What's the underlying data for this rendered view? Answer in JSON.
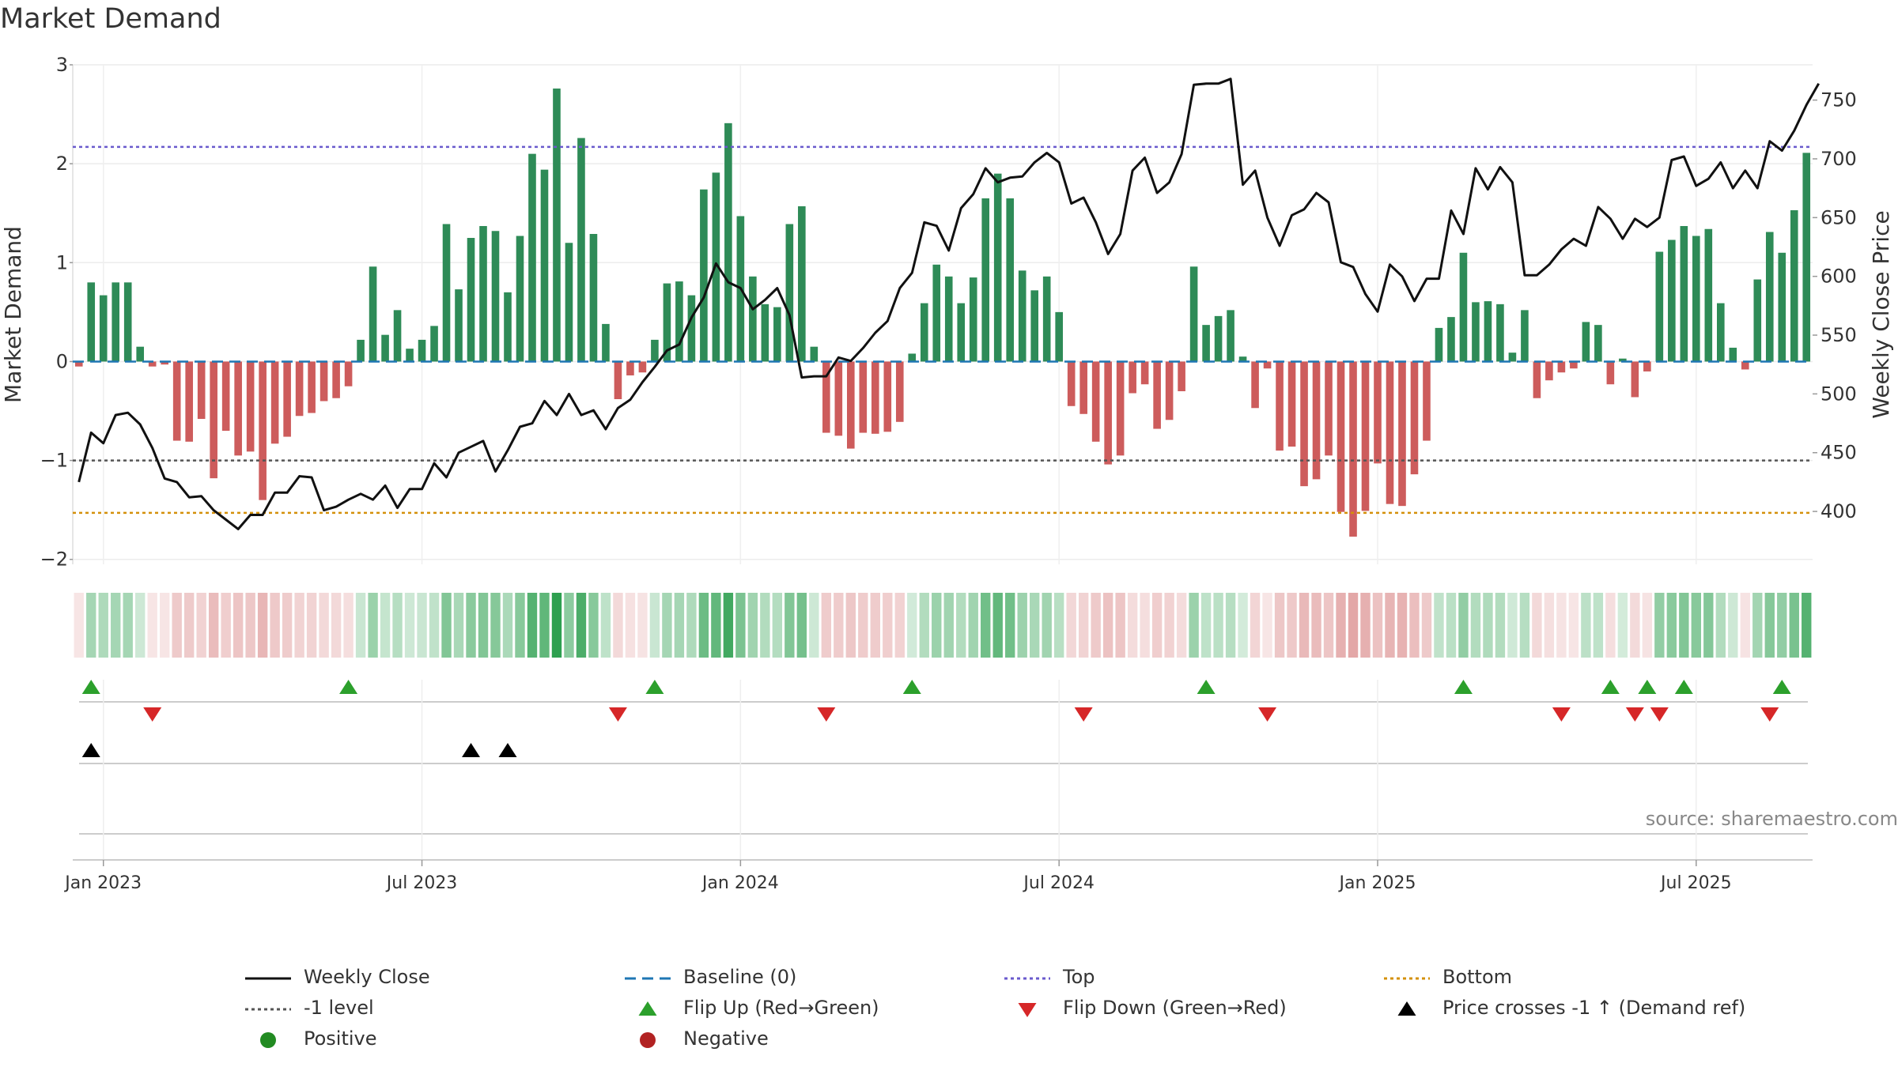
{
  "title": "Market Demand",
  "source": "source: sharemaestro.com",
  "colors": {
    "pos_bar": "#2e8b57",
    "neg_bar": "#cd5c5c",
    "price": "#111111",
    "baseline": "#1f77b4",
    "top": "#6a5acd",
    "minus1": "#555555",
    "bottom": "#d4900a",
    "flip_up": "#2ca02c",
    "flip_down": "#d62728",
    "cross": "#000000",
    "positive": "#228b22",
    "negative": "#b22222"
  },
  "chart_data": {
    "type": "bar+line",
    "title": "Market Demand",
    "ylabel_left": "Market Demand",
    "ylabel_right": "Weekly Close Price",
    "ylim_left": [
      -2.05,
      3.0
    ],
    "ylim_right": [
      355,
      780
    ],
    "left_ticks": [
      "3",
      "2",
      "1",
      "0",
      "−1",
      "−2"
    ],
    "left_tick_values": [
      3,
      2,
      1,
      0,
      -1,
      -2
    ],
    "right_ticks": [
      "750",
      "700",
      "650",
      "600",
      "550",
      "500",
      "450",
      "400"
    ],
    "right_tick_values": [
      750,
      700,
      650,
      600,
      550,
      500,
      450,
      400
    ],
    "x_ticks": [
      "Jan 2023",
      "Jul 2023",
      "Jan 2024",
      "Jul 2024",
      "Jan 2025",
      "Jul 2025"
    ],
    "x_tick_weeks": [
      2,
      28,
      54,
      80,
      106,
      132
    ],
    "reference_lines": {
      "baseline": 0,
      "top": 2.17,
      "minus1": -1.0,
      "bottom": -1.53
    },
    "demand": [
      -0.05,
      0.8,
      0.67,
      0.8,
      0.8,
      0.15,
      -0.05,
      -0.03,
      -0.8,
      -0.81,
      -0.58,
      -1.18,
      -0.7,
      -0.95,
      -0.91,
      -1.4,
      -0.83,
      -0.76,
      -0.55,
      -0.52,
      -0.4,
      -0.37,
      -0.25,
      0.22,
      0.96,
      0.27,
      0.52,
      0.13,
      0.22,
      0.36,
      1.39,
      0.73,
      1.25,
      1.37,
      1.32,
      0.7,
      1.27,
      2.1,
      1.94,
      2.76,
      1.2,
      2.26,
      1.29,
      0.38,
      -0.38,
      -0.14,
      -0.11,
      0.22,
      0.79,
      0.81,
      0.67,
      1.74,
      1.91,
      2.41,
      1.47,
      0.86,
      0.58,
      0.55,
      1.39,
      1.57,
      0.15,
      -0.72,
      -0.75,
      -0.88,
      -0.72,
      -0.73,
      -0.71,
      -0.61,
      0.08,
      0.59,
      0.98,
      0.86,
      0.59,
      0.85,
      1.65,
      1.9,
      1.65,
      0.92,
      0.72,
      0.86,
      0.5,
      -0.45,
      -0.53,
      -0.81,
      -1.04,
      -0.95,
      -0.32,
      -0.23,
      -0.68,
      -0.59,
      -0.3,
      0.96,
      0.37,
      0.46,
      0.52,
      0.05,
      -0.47,
      -0.07,
      -0.9,
      -0.86,
      -1.26,
      -1.19,
      -0.95,
      -1.52,
      -1.77,
      -1.51,
      -1.03,
      -1.44,
      -1.46,
      -1.14,
      -0.8,
      0.34,
      0.45,
      1.1,
      0.6,
      0.61,
      0.58,
      0.09,
      0.52,
      -0.37,
      -0.19,
      -0.11,
      -0.07,
      0.4,
      0.37,
      -0.23,
      0.03,
      -0.36,
      -0.1,
      1.11,
      1.23,
      1.37,
      1.27,
      1.34,
      0.59,
      0.14,
      -0.08,
      0.83,
      1.31,
      1.1,
      1.53,
      2.11
    ],
    "weekly_close": [
      425,
      467,
      458,
      482,
      484,
      474,
      454,
      428,
      425,
      412,
      413,
      401,
      393,
      385,
      397,
      397,
      416,
      416,
      430,
      429,
      401,
      404,
      410,
      415,
      410,
      422,
      403,
      419,
      419,
      441,
      429,
      450,
      455,
      460,
      434,
      452,
      472,
      475,
      494,
      482,
      500,
      482,
      486,
      470,
      488,
      495,
      510,
      523,
      537,
      542,
      565,
      582,
      611,
      595,
      590,
      572,
      580,
      590,
      567,
      514,
      515,
      515,
      531,
      528,
      539,
      552,
      562,
      590,
      603,
      646,
      643,
      622,
      658,
      670,
      692,
      680,
      684,
      685,
      697,
      705,
      697,
      662,
      667,
      646,
      619,
      636,
      690,
      701,
      671,
      680,
      704,
      763,
      764,
      764,
      768,
      678,
      690,
      650,
      626,
      652,
      657,
      671,
      663,
      612,
      608,
      585,
      570,
      610,
      600,
      579,
      598,
      598,
      656,
      636,
      692,
      674,
      693,
      680,
      601,
      601,
      610,
      623,
      632,
      626,
      659,
      649,
      632,
      649,
      642,
      650,
      699,
      702,
      677,
      683,
      697,
      675,
      690,
      675,
      715,
      707,
      724,
      746,
      764
    ]
  },
  "flip_up_weeks": [
    1,
    22,
    47,
    68,
    92,
    113,
    125,
    128,
    131,
    139
  ],
  "flip_down_weeks": [
    6,
    44,
    61,
    82,
    97,
    121,
    127,
    129,
    138
  ],
  "price_cross_weeks": [
    1,
    32,
    35
  ],
  "legend": [
    {
      "label": "Weekly Close",
      "symbol": "solid-line"
    },
    {
      "label": "Baseline (0)",
      "symbol": "dash-line"
    },
    {
      "label": "Top",
      "symbol": "dot-line-top"
    },
    {
      "label": "Bottom",
      "symbol": "dot-line-bottom"
    },
    {
      "label": "-1 level",
      "symbol": "dot-line-minus1"
    },
    {
      "label": "Flip Up (Red→Green)",
      "symbol": "triangle-up-green"
    },
    {
      "label": "Flip Down (Green→Red)",
      "symbol": "triangle-down-red"
    },
    {
      "label": "Price crosses -1 ↑ (Demand ref)",
      "symbol": "triangle-up-black"
    },
    {
      "label": "Positive",
      "symbol": "circle-green"
    },
    {
      "label": "Negative",
      "symbol": "circle-red"
    }
  ]
}
